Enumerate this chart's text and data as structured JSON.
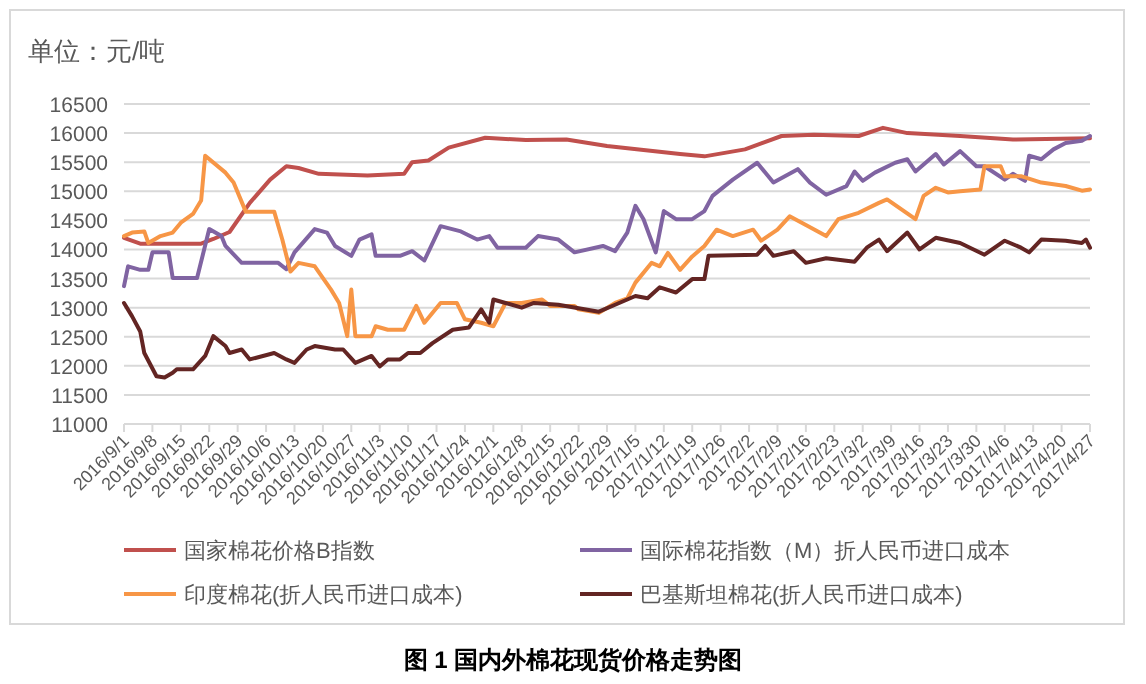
{
  "chart_data": {
    "type": "line",
    "title": "图 1 国内外棉花现货价格走势图",
    "ylabel": "单位：元/吨",
    "ylim": [
      11000,
      16500
    ],
    "yticks": [
      11000,
      11500,
      12000,
      12500,
      13000,
      13500,
      14000,
      14500,
      15000,
      15500,
      16000,
      16500
    ],
    "xlim": [
      "2016-09-01",
      "2017-04-27"
    ],
    "xticks": [
      {
        "value": "2016-09-01",
        "label": "2016/9/1"
      },
      {
        "value": "2016-09-08",
        "label": "2016/9/8"
      },
      {
        "value": "2016-09-15",
        "label": "2016/9/15"
      },
      {
        "value": "2016-09-22",
        "label": "2016/9/22"
      },
      {
        "value": "2016-09-29",
        "label": "2016/9/29"
      },
      {
        "value": "2016-10-06",
        "label": "2016/10/6"
      },
      {
        "value": "2016-10-13",
        "label": "2016/10/13"
      },
      {
        "value": "2016-10-20",
        "label": "2016/10/20"
      },
      {
        "value": "2016-10-27",
        "label": "2016/10/27"
      },
      {
        "value": "2016-11-03",
        "label": "2016/11/3"
      },
      {
        "value": "2016-11-10",
        "label": "2016/11/10"
      },
      {
        "value": "2016-11-17",
        "label": "2016/11/17"
      },
      {
        "value": "2016-11-24",
        "label": "2016/11/24"
      },
      {
        "value": "2016-12-01",
        "label": "2016/12/1"
      },
      {
        "value": "2016-12-08",
        "label": "2016/12/8"
      },
      {
        "value": "2016-12-15",
        "label": "2016/12/15"
      },
      {
        "value": "2016-12-22",
        "label": "2016/12/22"
      },
      {
        "value": "2016-12-29",
        "label": "2016/12/29"
      },
      {
        "value": "2017-01-05",
        "label": "2017/1/5"
      },
      {
        "value": "2017-01-12",
        "label": "2017/1/12"
      },
      {
        "value": "2017-01-19",
        "label": "2017/1/19"
      },
      {
        "value": "2017-01-26",
        "label": "2017/1/26"
      },
      {
        "value": "2017-02-02",
        "label": "2017/2/2"
      },
      {
        "value": "2017-02-09",
        "label": "2017/2/9"
      },
      {
        "value": "2017-02-16",
        "label": "2017/2/16"
      },
      {
        "value": "2017-02-23",
        "label": "2017/2/23"
      },
      {
        "value": "2017-03-02",
        "label": "2017/3/2"
      },
      {
        "value": "2017-03-09",
        "label": "2017/3/9"
      },
      {
        "value": "2017-03-16",
        "label": "2017/3/16"
      },
      {
        "value": "2017-03-23",
        "label": "2017/3/23"
      },
      {
        "value": "2017-03-30",
        "label": "2017/3/30"
      },
      {
        "value": "2017-04-06",
        "label": "2017/4/6"
      },
      {
        "value": "2017-04-13",
        "label": "2017/4/13"
      },
      {
        "value": "2017-04-20",
        "label": "2017/4/20"
      },
      {
        "value": "2017-04-27",
        "label": "2017/4/27"
      }
    ],
    "grid": "y",
    "legend": "bottom",
    "line_style": "solid",
    "series": [
      {
        "name": "国家棉花价格B指数",
        "color": "#c0504d",
        "x": [
          "2016-09-01",
          "2016-09-05",
          "2016-09-20",
          "2016-09-23",
          "2016-09-27",
          "2016-10-02",
          "2016-10-07",
          "2016-10-11",
          "2016-10-14",
          "2016-10-19",
          "2016-10-31",
          "2016-11-09",
          "2016-11-11",
          "2016-11-15",
          "2016-11-20",
          "2016-11-29",
          "2016-12-09",
          "2016-12-19",
          "2016-12-29",
          "2017-01-16",
          "2017-01-22",
          "2017-02-01",
          "2017-02-10",
          "2017-02-18",
          "2017-03-01",
          "2017-03-07",
          "2017-03-13",
          "2017-03-26",
          "2017-04-08",
          "2017-04-27"
        ],
        "values": [
          14200,
          14100,
          14100,
          14180,
          14300,
          14800,
          15200,
          15430,
          15400,
          15300,
          15270,
          15300,
          15500,
          15530,
          15750,
          15920,
          15880,
          15890,
          15780,
          15640,
          15600,
          15720,
          15950,
          15970,
          15950,
          16090,
          16000,
          15950,
          15890,
          15910
        ]
      },
      {
        "name": "国际棉花指数（M）折人民币进口成本",
        "color": "#8064a2",
        "x": [
          "2016-09-01",
          "2016-09-02",
          "2016-09-05",
          "2016-09-07",
          "2016-09-08",
          "2016-09-12",
          "2016-09-13",
          "2016-09-19",
          "2016-09-22",
          "2016-09-25",
          "2016-09-26",
          "2016-09-30",
          "2016-10-09",
          "2016-10-11",
          "2016-10-13",
          "2016-10-18",
          "2016-10-21",
          "2016-10-23",
          "2016-10-27",
          "2016-10-29",
          "2016-11-01",
          "2016-11-02",
          "2016-11-08",
          "2016-11-11",
          "2016-11-14",
          "2016-11-18",
          "2016-11-23",
          "2016-11-27",
          "2016-11-30",
          "2016-12-02",
          "2016-12-09",
          "2016-12-12",
          "2016-12-17",
          "2016-12-21",
          "2016-12-28",
          "2016-12-31",
          "2017-01-03",
          "2017-01-05",
          "2017-01-07",
          "2017-01-10",
          "2017-01-12",
          "2017-01-15",
          "2017-01-19",
          "2017-01-22",
          "2017-01-24",
          "2017-01-29",
          "2017-02-04",
          "2017-02-08",
          "2017-02-14",
          "2017-02-17",
          "2017-02-21",
          "2017-02-26",
          "2017-02-28",
          "2017-03-02",
          "2017-03-05",
          "2017-03-10",
          "2017-03-13",
          "2017-03-15",
          "2017-03-20",
          "2017-03-22",
          "2017-03-26",
          "2017-03-30",
          "2017-04-01",
          "2017-04-06",
          "2017-04-08",
          "2017-04-11",
          "2017-04-12",
          "2017-04-15",
          "2017-04-18",
          "2017-04-21",
          "2017-04-25",
          "2017-04-27"
        ],
        "values": [
          13370,
          13710,
          13650,
          13650,
          13950,
          13950,
          13510,
          13510,
          14350,
          14230,
          14060,
          13770,
          13770,
          13660,
          13950,
          14350,
          14290,
          14060,
          13890,
          14170,
          14260,
          13890,
          13890,
          13970,
          13810,
          14400,
          14310,
          14170,
          14230,
          14030,
          14030,
          14230,
          14170,
          13950,
          14060,
          13970,
          14290,
          14750,
          14520,
          13950,
          14660,
          14520,
          14520,
          14660,
          14920,
          15200,
          15490,
          15150,
          15380,
          15150,
          14940,
          15090,
          15340,
          15180,
          15320,
          15490,
          15550,
          15340,
          15640,
          15460,
          15690,
          15430,
          15430,
          15200,
          15300,
          15180,
          15610,
          15550,
          15720,
          15830,
          15870,
          15950
        ]
      },
      {
        "name": "印度棉花(折人民币进口成本)",
        "color": "#f79646",
        "x": [
          "2016-09-01",
          "2016-09-03",
          "2016-09-06",
          "2016-09-07",
          "2016-09-10",
          "2016-09-13",
          "2016-09-15",
          "2016-09-18",
          "2016-09-20",
          "2016-09-21",
          "2016-09-26",
          "2016-09-28",
          "2016-10-01",
          "2016-10-08",
          "2016-10-10",
          "2016-10-12",
          "2016-10-14",
          "2016-10-18",
          "2016-10-22",
          "2016-10-24",
          "2016-10-26",
          "2016-10-27",
          "2016-10-28",
          "2016-11-01",
          "2016-11-02",
          "2016-11-05",
          "2016-11-09",
          "2016-11-12",
          "2016-11-14",
          "2016-11-18",
          "2016-11-22",
          "2016-11-24",
          "2016-11-28",
          "2016-12-01",
          "2016-12-04",
          "2016-12-08",
          "2016-12-13",
          "2016-12-15",
          "2016-12-21",
          "2016-12-22",
          "2016-12-27",
          "2016-12-31",
          "2017-01-03",
          "2017-01-05",
          "2017-01-09",
          "2017-01-11",
          "2017-01-13",
          "2017-01-16",
          "2017-01-19",
          "2017-01-22",
          "2017-01-25",
          "2017-01-29",
          "2017-02-03",
          "2017-02-05",
          "2017-02-09",
          "2017-02-12",
          "2017-02-16",
          "2017-02-21",
          "2017-02-24",
          "2017-03-01",
          "2017-03-06",
          "2017-03-08",
          "2017-03-15",
          "2017-03-17",
          "2017-03-20",
          "2017-03-23",
          "2017-03-26",
          "2017-03-31",
          "2017-04-01",
          "2017-04-05",
          "2017-04-06",
          "2017-04-10",
          "2017-04-15",
          "2017-04-21",
          "2017-04-25",
          "2017-04-27"
        ],
        "values": [
          14230,
          14290,
          14310,
          14110,
          14230,
          14290,
          14460,
          14610,
          14840,
          15610,
          15320,
          15150,
          14650,
          14650,
          14170,
          13620,
          13770,
          13710,
          13310,
          13080,
          12510,
          13310,
          12510,
          12510,
          12680,
          12620,
          12620,
          13030,
          12740,
          13080,
          13080,
          12800,
          12740,
          12680,
          13080,
          13080,
          13140,
          13030,
          13030,
          12970,
          12910,
          13080,
          13160,
          13430,
          13770,
          13710,
          13940,
          13650,
          13880,
          14060,
          14340,
          14230,
          14340,
          14150,
          14340,
          14570,
          14420,
          14230,
          14520,
          14630,
          14800,
          14860,
          14520,
          14920,
          15060,
          14980,
          15000,
          15030,
          15430,
          15430,
          15260,
          15260,
          15150,
          15090,
          15010,
          15030
        ]
      },
      {
        "name": "巴基斯坦棉花(折人民币进口成本)",
        "color": "#632523",
        "x": [
          "2016-09-01",
          "2016-09-03",
          "2016-09-05",
          "2016-09-06",
          "2016-09-09",
          "2016-09-11",
          "2016-09-13",
          "2016-09-14",
          "2016-09-18",
          "2016-09-21",
          "2016-09-23",
          "2016-09-26",
          "2016-09-27",
          "2016-09-30",
          "2016-10-02",
          "2016-10-08",
          "2016-10-11",
          "2016-10-13",
          "2016-10-16",
          "2016-10-18",
          "2016-10-23",
          "2016-10-25",
          "2016-10-28",
          "2016-11-01",
          "2016-11-03",
          "2016-11-05",
          "2016-11-08",
          "2016-11-10",
          "2016-11-13",
          "2016-11-16",
          "2016-11-21",
          "2016-11-25",
          "2016-11-28",
          "2016-11-30",
          "2016-12-01",
          "2016-12-04",
          "2016-12-08",
          "2016-12-11",
          "2016-12-17",
          "2016-12-22",
          "2016-12-27",
          "2016-12-31",
          "2017-01-05",
          "2017-01-08",
          "2017-01-11",
          "2017-01-15",
          "2017-01-19",
          "2017-01-22",
          "2017-01-23",
          "2017-02-04",
          "2017-02-06",
          "2017-02-08",
          "2017-02-13",
          "2017-02-16",
          "2017-02-21",
          "2017-02-28",
          "2017-03-03",
          "2017-03-06",
          "2017-03-08",
          "2017-03-13",
          "2017-03-16",
          "2017-03-20",
          "2017-03-26",
          "2017-04-01",
          "2017-04-06",
          "2017-04-10",
          "2017-04-12",
          "2017-04-15",
          "2017-04-21",
          "2017-04-25",
          "2017-04-26",
          "2017-04-27"
        ],
        "values": [
          13080,
          12850,
          12590,
          12220,
          11820,
          11800,
          11880,
          11940,
          11940,
          12170,
          12510,
          12340,
          12220,
          12280,
          12110,
          12220,
          12110,
          12050,
          12280,
          12340,
          12280,
          12280,
          12050,
          12170,
          11990,
          12110,
          12110,
          12220,
          12220,
          12390,
          12620,
          12660,
          12970,
          12740,
          13140,
          13080,
          13000,
          13080,
          13050,
          12990,
          12930,
          13050,
          13200,
          13160,
          13350,
          13260,
          13490,
          13490,
          13890,
          13910,
          14060,
          13890,
          13970,
          13770,
          13850,
          13790,
          14030,
          14170,
          13970,
          14290,
          14000,
          14200,
          14110,
          13910,
          14150,
          14030,
          13950,
          14170,
          14150,
          14110,
          14170,
          14030
        ]
      }
    ]
  }
}
